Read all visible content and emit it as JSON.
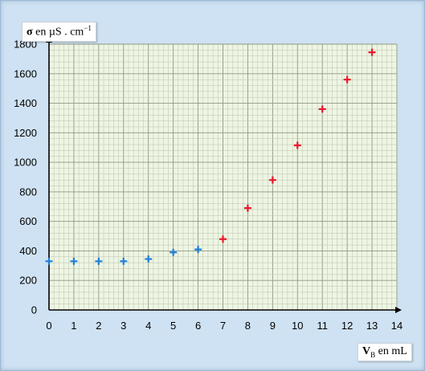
{
  "chart_data": {
    "type": "scatter",
    "y_axis_label": {
      "symbol": "σ",
      "text": " en µS . cm",
      "sup": "−1"
    },
    "x_axis_label": {
      "symbol": "V",
      "sub": "B",
      "text": " en mL"
    },
    "xlim": [
      0,
      14
    ],
    "ylim": [
      0,
      1800
    ],
    "x_ticks": [
      0,
      1,
      2,
      3,
      4,
      5,
      6,
      7,
      8,
      9,
      10,
      11,
      12,
      13,
      14
    ],
    "y_ticks": [
      0,
      200,
      400,
      600,
      800,
      1000,
      1200,
      1400,
      1600,
      1800
    ],
    "grid": true,
    "series": [
      {
        "color": "#1e7fd8",
        "marker": "plus",
        "points": [
          [
            0,
            330
          ],
          [
            1,
            330
          ],
          [
            2,
            330
          ],
          [
            3,
            330
          ],
          [
            4,
            345
          ],
          [
            5,
            390
          ],
          [
            6,
            410
          ]
        ]
      },
      {
        "color": "#e8192c",
        "marker": "plus",
        "points": [
          [
            7,
            480
          ],
          [
            8,
            690
          ],
          [
            9,
            880
          ],
          [
            10,
            1115
          ],
          [
            11,
            1360
          ],
          [
            12,
            1560
          ],
          [
            13,
            1745
          ]
        ]
      }
    ]
  }
}
